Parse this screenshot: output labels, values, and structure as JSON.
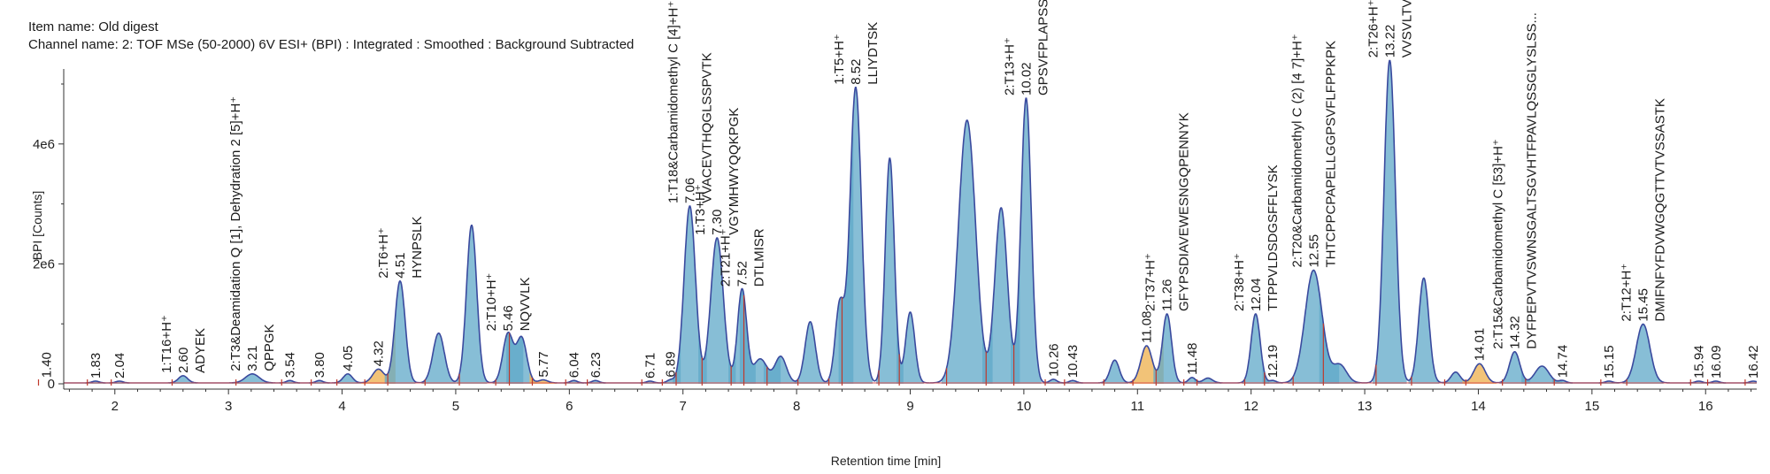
{
  "header": {
    "item_name": "Item name: Old digest",
    "channel_name": "Channel name: 2: TOF MSe (50-2000) 6V ESI+ (BPI) : Integrated : Smoothed : Background Subtracted"
  },
  "chart_data": {
    "type": "line",
    "xlabel": "Retention time [min]",
    "ylabel": "BPI [Counts]",
    "xlim": [
      1.55,
      16.45
    ],
    "ylim": [
      0,
      5600000
    ],
    "x_ticks": [
      2,
      3,
      4,
      5,
      6,
      7,
      8,
      9,
      10,
      11,
      12,
      13,
      14,
      15,
      16
    ],
    "y_ticks": [
      {
        "value": 0,
        "label": "0"
      },
      {
        "value": 2000000,
        "label": "2e6"
      },
      {
        "value": 4000000,
        "label": "4e6"
      }
    ],
    "line_color": "#3a4a9e",
    "fill_color": "#5fa8c8",
    "highlight_color": "#f0b860",
    "peaks": [
      {
        "rt": 1.4,
        "h": 40000,
        "w": 0.03
      },
      {
        "rt": 1.83,
        "h": 30000,
        "w": 0.03
      },
      {
        "rt": 2.04,
        "h": 30000,
        "w": 0.03
      },
      {
        "rt": 2.6,
        "h": 120000,
        "w": 0.04
      },
      {
        "rt": 3.21,
        "h": 150000,
        "w": 0.06
      },
      {
        "rt": 3.54,
        "h": 40000,
        "w": 0.03
      },
      {
        "rt": 3.8,
        "h": 40000,
        "w": 0.03
      },
      {
        "rt": 4.05,
        "h": 150000,
        "w": 0.04
      },
      {
        "rt": 4.32,
        "h": 230000,
        "w": 0.05,
        "hl": true
      },
      {
        "rt": 4.51,
        "h": 1700000,
        "w": 0.045
      },
      {
        "rt": 4.85,
        "h": 830000,
        "w": 0.05
      },
      {
        "rt": 5.14,
        "h": 2630000,
        "w": 0.045
      },
      {
        "rt": 5.46,
        "h": 820000,
        "w": 0.045
      },
      {
        "rt": 5.58,
        "h": 750000,
        "w": 0.045
      },
      {
        "rt": 5.77,
        "h": 50000,
        "w": 0.04,
        "hl": true
      },
      {
        "rt": 6.04,
        "h": 40000,
        "w": 0.03
      },
      {
        "rt": 6.23,
        "h": 40000,
        "w": 0.03
      },
      {
        "rt": 6.71,
        "h": 30000,
        "w": 0.03
      },
      {
        "rt": 6.89,
        "h": 50000,
        "w": 0.03
      },
      {
        "rt": 7.06,
        "h": 2950000,
        "w": 0.05
      },
      {
        "rt": 7.3,
        "h": 2420000,
        "w": 0.055
      },
      {
        "rt": 7.52,
        "h": 1560000,
        "w": 0.04
      },
      {
        "rt": 7.68,
        "h": 400000,
        "w": 0.06
      },
      {
        "rt": 7.86,
        "h": 440000,
        "w": 0.05
      },
      {
        "rt": 8.12,
        "h": 1020000,
        "w": 0.045
      },
      {
        "rt": 8.38,
        "h": 1300000,
        "w": 0.04
      },
      {
        "rt": 8.52,
        "h": 4930000,
        "w": 0.05
      },
      {
        "rt": 8.82,
        "h": 3750000,
        "w": 0.04
      },
      {
        "rt": 9.0,
        "h": 1180000,
        "w": 0.04
      },
      {
        "rt": 9.5,
        "h": 4380000,
        "w": 0.075
      },
      {
        "rt": 9.8,
        "h": 2920000,
        "w": 0.055
      },
      {
        "rt": 10.02,
        "h": 4750000,
        "w": 0.045
      },
      {
        "rt": 10.26,
        "h": 60000,
        "w": 0.03
      },
      {
        "rt": 10.43,
        "h": 40000,
        "w": 0.03
      },
      {
        "rt": 10.8,
        "h": 380000,
        "w": 0.04
      },
      {
        "rt": 11.08,
        "h": 620000,
        "w": 0.05,
        "hl": true
      },
      {
        "rt": 11.26,
        "h": 1150000,
        "w": 0.04
      },
      {
        "rt": 11.48,
        "h": 90000,
        "w": 0.03
      },
      {
        "rt": 11.62,
        "h": 80000,
        "w": 0.04
      },
      {
        "rt": 12.04,
        "h": 1150000,
        "w": 0.04
      },
      {
        "rt": 12.19,
        "h": 40000,
        "w": 0.03
      },
      {
        "rt": 12.55,
        "h": 1880000,
        "w": 0.075
      },
      {
        "rt": 12.78,
        "h": 300000,
        "w": 0.06
      },
      {
        "rt": 13.22,
        "h": 5380000,
        "w": 0.05
      },
      {
        "rt": 13.52,
        "h": 1750000,
        "w": 0.045
      },
      {
        "rt": 13.8,
        "h": 180000,
        "w": 0.04
      },
      {
        "rt": 14.01,
        "h": 320000,
        "w": 0.05,
        "hl": true
      },
      {
        "rt": 14.32,
        "h": 520000,
        "w": 0.045
      },
      {
        "rt": 14.56,
        "h": 280000,
        "w": 0.06
      },
      {
        "rt": 14.74,
        "h": 40000,
        "w": 0.03
      },
      {
        "rt": 15.15,
        "h": 30000,
        "w": 0.03
      },
      {
        "rt": 15.45,
        "h": 980000,
        "w": 0.06
      },
      {
        "rt": 15.94,
        "h": 30000,
        "w": 0.03
      },
      {
        "rt": 16.09,
        "h": 30000,
        "w": 0.03
      },
      {
        "rt": 16.42,
        "h": 30000,
        "w": 0.03
      }
    ],
    "annotations": [
      {
        "rt": 1.4,
        "y": 40000,
        "lines": [
          "1.40"
        ]
      },
      {
        "rt": 1.83,
        "y": 30000,
        "lines": [
          "1.83"
        ]
      },
      {
        "rt": 2.04,
        "y": 30000,
        "lines": [
          "2.04"
        ]
      },
      {
        "rt": 2.6,
        "y": 120000,
        "lines": [
          "1:T16+H⁺",
          "2.60",
          "ADYEK"
        ]
      },
      {
        "rt": 3.21,
        "y": 150000,
        "lines": [
          "2:T3&Deamidation Q [1], Dehydration 2 [5]+H⁺",
          "3.21",
          "QPPGK"
        ]
      },
      {
        "rt": 3.54,
        "y": 40000,
        "lines": [
          "3.54"
        ]
      },
      {
        "rt": 3.8,
        "y": 40000,
        "lines": [
          "3.80"
        ]
      },
      {
        "rt": 4.05,
        "y": 150000,
        "lines": [
          "4.05"
        ]
      },
      {
        "rt": 4.32,
        "y": 230000,
        "lines": [
          "4.32"
        ]
      },
      {
        "rt": 4.51,
        "y": 1700000,
        "lines": [
          "2:T6+H⁺",
          "4.51",
          "HYNPSLK"
        ]
      },
      {
        "rt": 5.46,
        "y": 820000,
        "lines": [
          "2:T10+H⁺",
          "5.46",
          "NQVVLK"
        ]
      },
      {
        "rt": 5.77,
        "y": 50000,
        "lines": [
          "5.77"
        ]
      },
      {
        "rt": 6.04,
        "y": 40000,
        "lines": [
          "6.04"
        ]
      },
      {
        "rt": 6.23,
        "y": 40000,
        "lines": [
          "6.23"
        ]
      },
      {
        "rt": 6.71,
        "y": 30000,
        "lines": [
          "6.71"
        ]
      },
      {
        "rt": 6.89,
        "y": 50000,
        "lines": [
          "6.89"
        ]
      },
      {
        "rt": 7.06,
        "y": 2950000,
        "lines": [
          "1:T18&Carbamidomethyl C [4]+H⁺",
          "7.06",
          "VVACEVTHQGLSSPVTK"
        ]
      },
      {
        "rt": 7.3,
        "y": 2420000,
        "lines": [
          "1:T3+H⁺",
          "7.30",
          "VGYMHWYQQKPGK"
        ]
      },
      {
        "rt": 7.52,
        "y": 1560000,
        "lines": [
          "2:T21+H⁺",
          "7.52",
          "DTLMISR"
        ]
      },
      {
        "rt": 8.52,
        "y": 4930000,
        "lines": [
          "1:T5+H⁺",
          "8.52",
          "LLIYDTSK"
        ]
      },
      {
        "rt": 10.02,
        "y": 4750000,
        "lines": [
          "2:T13+H⁺",
          "10.02",
          "GPSVFPLAPSSK"
        ]
      },
      {
        "rt": 10.26,
        "y": 60000,
        "lines": [
          "10.26"
        ]
      },
      {
        "rt": 10.43,
        "y": 40000,
        "lines": [
          "10.43"
        ]
      },
      {
        "rt": 11.08,
        "y": 620000,
        "lines": [
          "11.08"
        ]
      },
      {
        "rt": 11.26,
        "y": 1150000,
        "lines": [
          "2:T37+H⁺",
          "11.26",
          "GFYPSDIAVEWESNGQPENNYK"
        ]
      },
      {
        "rt": 11.48,
        "y": 90000,
        "lines": [
          "11.48"
        ]
      },
      {
        "rt": 12.04,
        "y": 1150000,
        "lines": [
          "2:T38+H⁺",
          "12.04",
          "TTPPVLDSDGSFFLYSK"
        ]
      },
      {
        "rt": 12.19,
        "y": 40000,
        "lines": [
          "12.19"
        ]
      },
      {
        "rt": 12.55,
        "y": 1880000,
        "lines": [
          "2:T20&Carbamidomethyl C (2) [4 7]+H⁺",
          "12.55",
          "THTCPPCPAPELLGGPSVFLFPPKPK"
        ]
      },
      {
        "rt": 13.22,
        "y": 5380000,
        "lines": [
          "2:T26+H⁺",
          "13.22",
          "VVSVLTVLHQDWLNGK"
        ]
      },
      {
        "rt": 14.01,
        "y": 320000,
        "lines": [
          "14.01"
        ]
      },
      {
        "rt": 14.32,
        "y": 520000,
        "lines": [
          "2:T15&Carbamidomethyl C [53]+H⁺",
          "14.32",
          "DYFPEPVTVSWNSGALTSGVHTFPAVLQSSGLYSLSS..."
        ]
      },
      {
        "rt": 14.74,
        "y": 40000,
        "lines": [
          "14.74"
        ]
      },
      {
        "rt": 15.15,
        "y": 30000,
        "lines": [
          "15.15"
        ]
      },
      {
        "rt": 15.45,
        "y": 980000,
        "lines": [
          "2:T12+H⁺",
          "15.45",
          "DMIFNFYFDVWGQGTTVTVSSASTK"
        ]
      },
      {
        "rt": 15.94,
        "y": 30000,
        "lines": [
          "15.94"
        ]
      },
      {
        "rt": 16.09,
        "y": 30000,
        "lines": [
          "16.09"
        ]
      },
      {
        "rt": 16.42,
        "y": 30000,
        "lines": [
          "16.42"
        ]
      }
    ]
  }
}
